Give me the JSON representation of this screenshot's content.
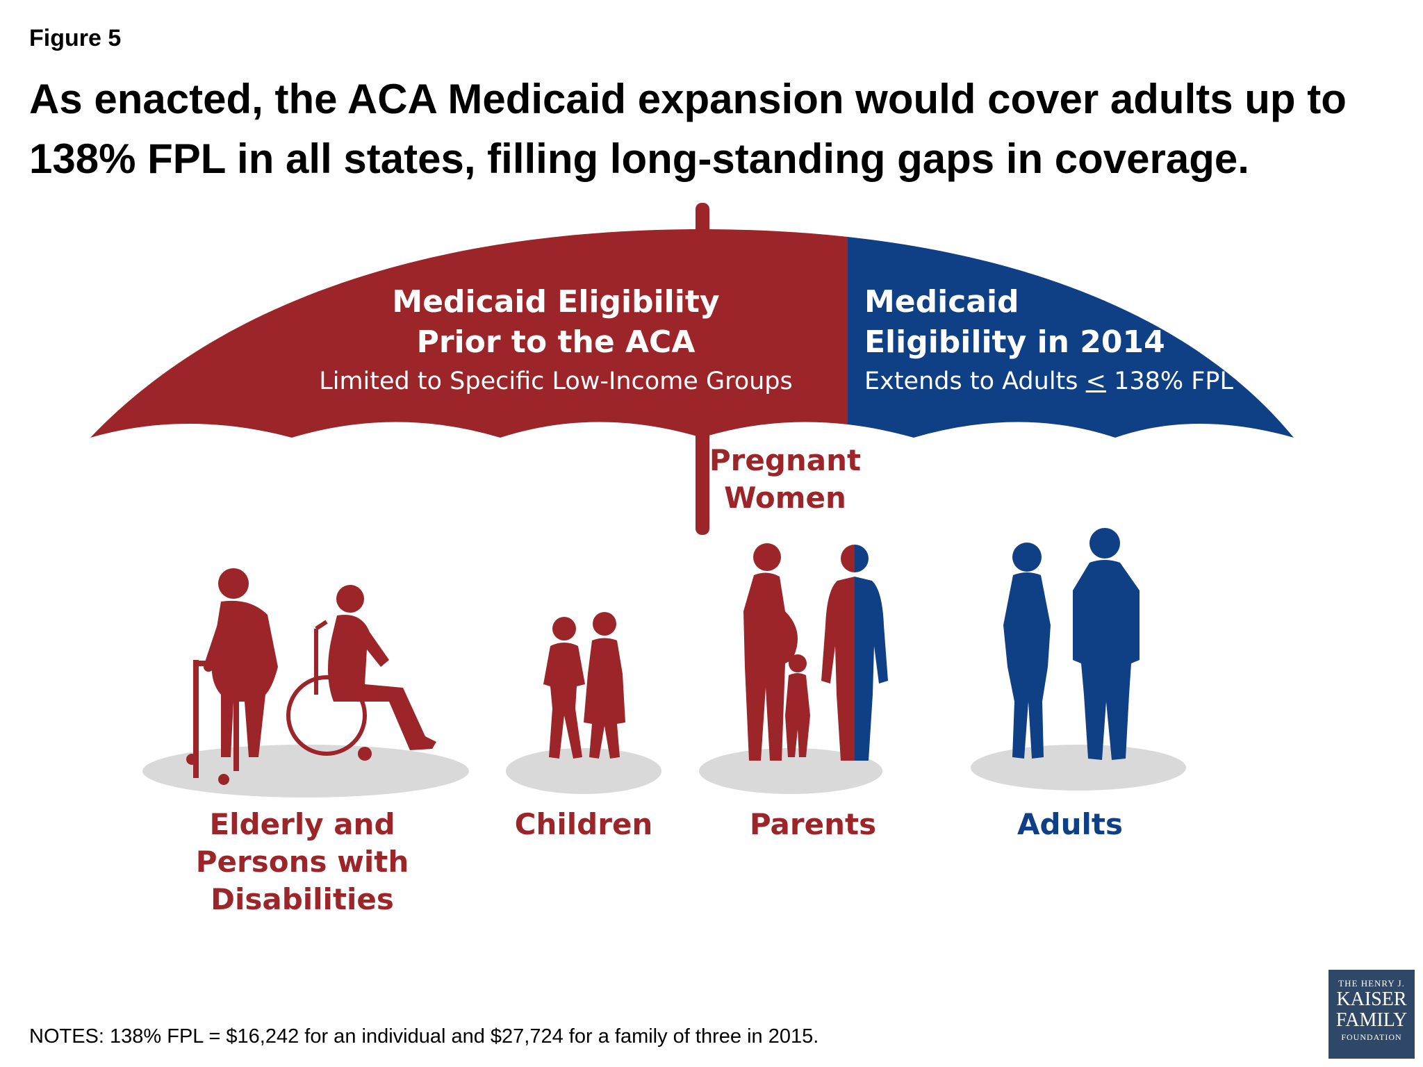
{
  "figure_label": "Figure 5",
  "title": "As enacted, the ACA Medicaid expansion would cover adults up to 138% FPL in all states, filling long-standing gaps in coverage.",
  "umbrella": {
    "left": {
      "heading_line1": "Medicaid Eligibility",
      "heading_line2": "Prior to the ACA",
      "subtext": "Limited to Specific Low-Income Groups",
      "color": "#9b2529"
    },
    "right": {
      "heading_line1": "Medicaid",
      "heading_line2": "Eligibility in 2014",
      "subtext_prefix": "Extends to Adults ",
      "subtext_symbol": "<",
      "subtext_suffix": " 138% FPL",
      "color": "#0f3f84"
    }
  },
  "groups": {
    "pregnant_line1": "Pregnant",
    "pregnant_line2": "Women",
    "elderly_line1": "Elderly and",
    "elderly_line2": "Persons with",
    "elderly_line3": "Disabilities",
    "children": "Children",
    "parents": "Parents",
    "adults": "Adults"
  },
  "notes": "NOTES: 138% FPL = $16,242 for an individual and $27,724 for a family of three in 2015.",
  "logo": {
    "line1": "THE HENRY J.",
    "line2": "KAISER",
    "line3": "FAMILY",
    "line4": "FOUNDATION"
  }
}
